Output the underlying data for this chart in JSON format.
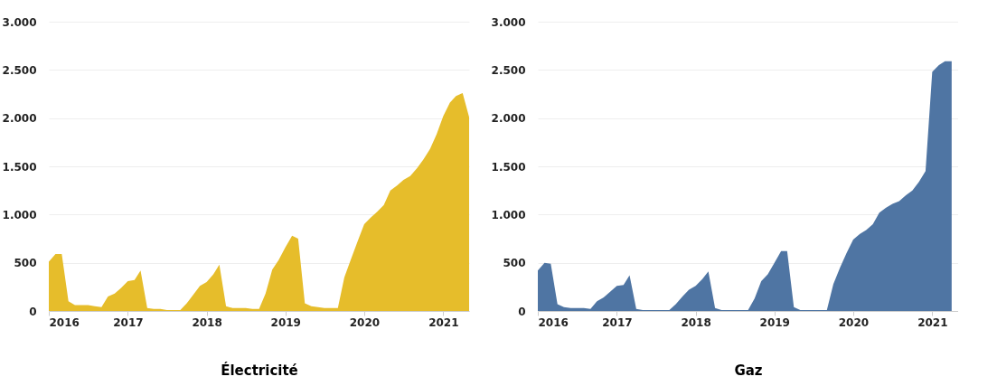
{
  "chart_data": [
    {
      "type": "area",
      "xlabel": "Électricité",
      "xlim": [
        "2016-01",
        "2021-05"
      ],
      "xticks": [
        "2016",
        "2017",
        "2018",
        "2019",
        "2020",
        "2021"
      ],
      "ylim": [
        0,
        3000
      ],
      "yticks": [
        0,
        500,
        {
          "value": 1000,
          "label": "1.000"
        },
        {
          "value": 1500,
          "label": "1.500"
        },
        {
          "value": 2000,
          "label": "2.000"
        },
        {
          "value": 2500,
          "label": "2.500"
        },
        {
          "value": 3000,
          "label": "3.000"
        }
      ],
      "grid": "y",
      "x": [
        "2016-01",
        "2016-02",
        "2016-03",
        "2016-04",
        "2016-05",
        "2016-06",
        "2016-07",
        "2016-08",
        "2016-09",
        "2016-10",
        "2016-11",
        "2016-12",
        "2017-01",
        "2017-02",
        "2017-03",
        "2017-04",
        "2017-05",
        "2017-06",
        "2017-07",
        "2017-08",
        "2017-09",
        "2017-10",
        "2017-11",
        "2017-12",
        "2018-01",
        "2018-02",
        "2018-03",
        "2018-04",
        "2018-05",
        "2018-06",
        "2018-07",
        "2018-08",
        "2018-09",
        "2018-10",
        "2018-11",
        "2018-12",
        "2019-01",
        "2019-02",
        "2019-03",
        "2019-04",
        "2019-05",
        "2019-06",
        "2019-07",
        "2019-08",
        "2019-09",
        "2019-10",
        "2019-11",
        "2019-12",
        "2020-01",
        "2020-02",
        "2020-03",
        "2020-04",
        "2020-05",
        "2020-06",
        "2020-07",
        "2020-08",
        "2020-09",
        "2020-10",
        "2020-11",
        "2020-12",
        "2021-01",
        "2021-02",
        "2021-03",
        "2021-04",
        "2021-05"
      ],
      "series": [
        {
          "color": "#e6bd2b",
          "values": [
            510,
            590,
            590,
            100,
            60,
            60,
            60,
            50,
            40,
            150,
            180,
            240,
            310,
            320,
            420,
            30,
            20,
            20,
            10,
            10,
            10,
            80,
            170,
            260,
            300,
            380,
            480,
            50,
            30,
            30,
            30,
            20,
            20,
            180,
            430,
            530,
            660,
            780,
            750,
            80,
            50,
            40,
            30,
            30,
            30,
            350,
            540,
            720,
            900,
            970,
            1030,
            1100,
            1250,
            1300,
            1360,
            1400,
            1480,
            1570,
            1680,
            1830,
            2020,
            2160,
            2230,
            2260,
            2010
          ]
        }
      ]
    },
    {
      "type": "area",
      "xlabel": "Gaz",
      "xlim": [
        "2016-01",
        "2021-05"
      ],
      "xticks": [
        "2016",
        "2017",
        "2018",
        "2019",
        "2020",
        "2021"
      ],
      "ylim": [
        0,
        3000
      ],
      "yticks": [
        0,
        500,
        {
          "value": 1000,
          "label": "1.000"
        },
        {
          "value": 1500,
          "label": "1.500"
        },
        {
          "value": 2000,
          "label": "2.000"
        },
        {
          "value": 2500,
          "label": "2.500"
        },
        {
          "value": 3000,
          "label": "3.000"
        }
      ],
      "grid": "y",
      "x": [
        "2016-01",
        "2016-02",
        "2016-03",
        "2016-04",
        "2016-05",
        "2016-06",
        "2016-07",
        "2016-08",
        "2016-09",
        "2016-10",
        "2016-11",
        "2016-12",
        "2017-01",
        "2017-02",
        "2017-03",
        "2017-04",
        "2017-05",
        "2017-06",
        "2017-07",
        "2017-08",
        "2017-09",
        "2017-10",
        "2017-11",
        "2017-12",
        "2018-01",
        "2018-02",
        "2018-03",
        "2018-04",
        "2018-05",
        "2018-06",
        "2018-07",
        "2018-08",
        "2018-09",
        "2018-10",
        "2018-11",
        "2018-12",
        "2019-01",
        "2019-02",
        "2019-03",
        "2019-04",
        "2019-05",
        "2019-06",
        "2019-07",
        "2019-08",
        "2019-09",
        "2019-10",
        "2019-11",
        "2019-12",
        "2020-01",
        "2020-02",
        "2020-03",
        "2020-04",
        "2020-05",
        "2020-06",
        "2020-07",
        "2020-08",
        "2020-09",
        "2020-10",
        "2020-11",
        "2020-12",
        "2021-01",
        "2021-02",
        "2021-03",
        "2021-04"
      ],
      "series": [
        {
          "color": "#4f75a3",
          "values": [
            420,
            500,
            490,
            70,
            40,
            30,
            30,
            30,
            20,
            100,
            140,
            200,
            260,
            270,
            370,
            20,
            10,
            10,
            10,
            10,
            10,
            70,
            150,
            220,
            260,
            330,
            410,
            30,
            10,
            10,
            10,
            10,
            10,
            130,
            310,
            380,
            500,
            620,
            620,
            40,
            10,
            10,
            10,
            10,
            10,
            280,
            450,
            600,
            740,
            800,
            840,
            900,
            1020,
            1070,
            1110,
            1140,
            1200,
            1250,
            1340,
            1450,
            2480,
            2550,
            2590,
            2590
          ]
        }
      ]
    }
  ]
}
